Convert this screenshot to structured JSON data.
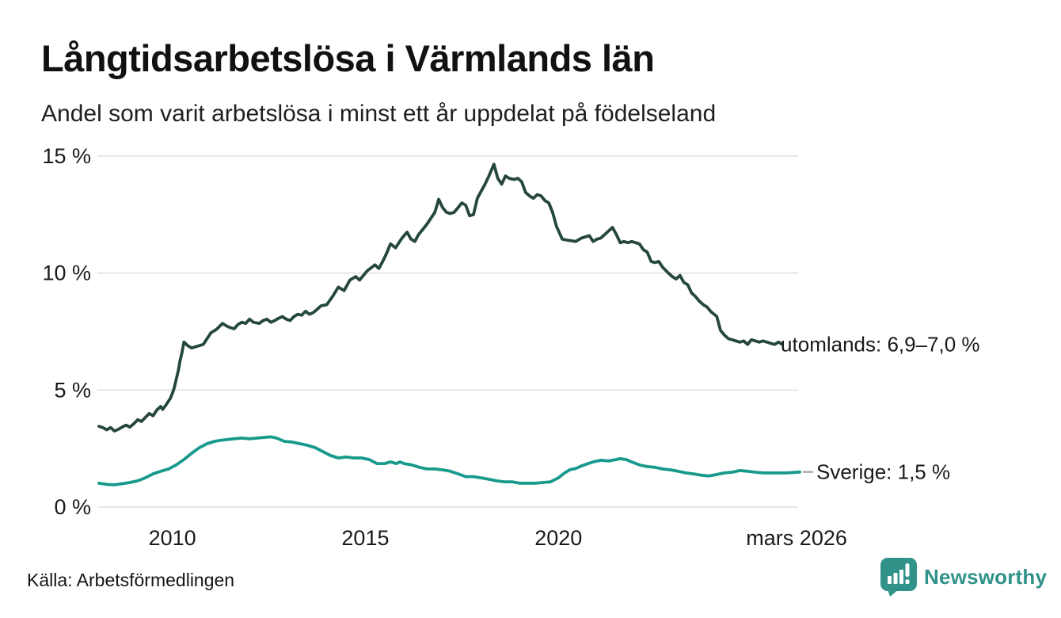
{
  "header": {
    "title": "Långtidsarbetslösa i Värmlands län",
    "subtitle": "Andel som varit arbetslösa i minst ett år uppdelat på födelseland"
  },
  "footer": {
    "source": "Källa: Arbetsförmedlingen",
    "brand": "Newsworthy",
    "brand_color": "#31928a"
  },
  "colors": {
    "background": "#ffffff",
    "text": "#1a1a1a",
    "grid": "#e1e1e1",
    "annotation_dash": "#999999"
  },
  "chart_data": {
    "type": "line",
    "title": "Långtidsarbetslösa i Värmlands län",
    "subtitle": "Andel som varit arbetslösa i minst ett år uppdelat på födelseland",
    "xlabel": "",
    "ylabel": "",
    "x_domain": [
      2008.1,
      2026.25
    ],
    "y_domain": [
      0,
      15
    ],
    "grid": "horizontal",
    "legend_position": "end-of-line",
    "y_ticks": [
      {
        "value": 15,
        "label": "15 %"
      },
      {
        "value": 10,
        "label": "10 %"
      },
      {
        "value": 5,
        "label": "5 %"
      },
      {
        "value": 0,
        "label": "0 %"
      }
    ],
    "x_ticks": [
      {
        "value": 2010,
        "label": "2010"
      },
      {
        "value": 2015,
        "label": "2015"
      },
      {
        "value": 2020,
        "label": "2020"
      },
      {
        "value": 2026.17,
        "label": "mars 2026"
      }
    ],
    "series": [
      {
        "name": "utomlands",
        "label": "utomlands: 6,9–7,0 %",
        "color": "#25473c",
        "points": [
          [
            2008.1,
            3.45
          ],
          [
            2008.2,
            3.4
          ],
          [
            2008.3,
            3.3
          ],
          [
            2008.4,
            3.4
          ],
          [
            2008.5,
            3.25
          ],
          [
            2008.6,
            3.32
          ],
          [
            2008.7,
            3.42
          ],
          [
            2008.8,
            3.5
          ],
          [
            2008.9,
            3.42
          ],
          [
            2009,
            3.56
          ],
          [
            2009.1,
            3.73
          ],
          [
            2009.2,
            3.66
          ],
          [
            2009.3,
            3.83
          ],
          [
            2009.4,
            4
          ],
          [
            2009.5,
            3.9
          ],
          [
            2009.6,
            4.15
          ],
          [
            2009.7,
            4.3
          ],
          [
            2009.75,
            4.17
          ],
          [
            2009.85,
            4.4
          ],
          [
            2009.95,
            4.65
          ],
          [
            2010,
            4.85
          ],
          [
            2010.05,
            5.1
          ],
          [
            2010.1,
            5.45
          ],
          [
            2010.15,
            5.8
          ],
          [
            2010.2,
            6.25
          ],
          [
            2010.25,
            6.6
          ],
          [
            2010.3,
            7.05
          ],
          [
            2010.4,
            6.9
          ],
          [
            2010.5,
            6.8
          ],
          [
            2010.6,
            6.85
          ],
          [
            2010.7,
            6.9
          ],
          [
            2010.8,
            6.95
          ],
          [
            2010.9,
            7.2
          ],
          [
            2011,
            7.45
          ],
          [
            2011.15,
            7.6
          ],
          [
            2011.3,
            7.85
          ],
          [
            2011.45,
            7.7
          ],
          [
            2011.6,
            7.62
          ],
          [
            2011.7,
            7.8
          ],
          [
            2011.8,
            7.9
          ],
          [
            2011.9,
            7.85
          ],
          [
            2012,
            8.03
          ],
          [
            2012.1,
            7.9
          ],
          [
            2012.25,
            7.85
          ],
          [
            2012.35,
            7.97
          ],
          [
            2012.45,
            8.03
          ],
          [
            2012.55,
            7.9
          ],
          [
            2012.65,
            7.97
          ],
          [
            2012.75,
            8.07
          ],
          [
            2012.85,
            8.14
          ],
          [
            2012.95,
            8.03
          ],
          [
            2013.05,
            7.97
          ],
          [
            2013.15,
            8.14
          ],
          [
            2013.25,
            8.24
          ],
          [
            2013.35,
            8.2
          ],
          [
            2013.45,
            8.37
          ],
          [
            2013.55,
            8.24
          ],
          [
            2013.65,
            8.31
          ],
          [
            2013.75,
            8.45
          ],
          [
            2013.85,
            8.6
          ],
          [
            2014,
            8.65
          ],
          [
            2014.15,
            9
          ],
          [
            2014.3,
            9.4
          ],
          [
            2014.45,
            9.25
          ],
          [
            2014.6,
            9.7
          ],
          [
            2014.75,
            9.85
          ],
          [
            2014.85,
            9.7
          ],
          [
            2015.05,
            10.1
          ],
          [
            2015.25,
            10.35
          ],
          [
            2015.35,
            10.2
          ],
          [
            2015.45,
            10.5
          ],
          [
            2015.55,
            10.85
          ],
          [
            2015.65,
            11.25
          ],
          [
            2015.78,
            11.08
          ],
          [
            2015.95,
            11.5
          ],
          [
            2016.08,
            11.75
          ],
          [
            2016.18,
            11.45
          ],
          [
            2016.28,
            11.35
          ],
          [
            2016.38,
            11.65
          ],
          [
            2016.48,
            11.85
          ],
          [
            2016.6,
            12.1
          ],
          [
            2016.7,
            12.35
          ],
          [
            2016.8,
            12.6
          ],
          [
            2016.9,
            13.15
          ],
          [
            2017,
            12.8
          ],
          [
            2017.1,
            12.6
          ],
          [
            2017.2,
            12.55
          ],
          [
            2017.3,
            12.6
          ],
          [
            2017.4,
            12.8
          ],
          [
            2017.5,
            13
          ],
          [
            2017.6,
            12.9
          ],
          [
            2017.7,
            12.45
          ],
          [
            2017.8,
            12.5
          ],
          [
            2017.9,
            13.2
          ],
          [
            2018,
            13.5
          ],
          [
            2018.1,
            13.8
          ],
          [
            2018.2,
            14.15
          ],
          [
            2018.33,
            14.65
          ],
          [
            2018.43,
            14.05
          ],
          [
            2018.53,
            13.8
          ],
          [
            2018.63,
            14.15
          ],
          [
            2018.73,
            14.05
          ],
          [
            2018.85,
            14
          ],
          [
            2018.95,
            14.05
          ],
          [
            2019.05,
            13.9
          ],
          [
            2019.15,
            13.45
          ],
          [
            2019.25,
            13.3
          ],
          [
            2019.35,
            13.2
          ],
          [
            2019.45,
            13.35
          ],
          [
            2019.55,
            13.3
          ],
          [
            2019.65,
            13.1
          ],
          [
            2019.75,
            13
          ],
          [
            2019.85,
            12.6
          ],
          [
            2019.95,
            12
          ],
          [
            2020.1,
            11.45
          ],
          [
            2020.25,
            11.4
          ],
          [
            2020.45,
            11.35
          ],
          [
            2020.6,
            11.5
          ],
          [
            2020.8,
            11.6
          ],
          [
            2020.9,
            11.35
          ],
          [
            2021,
            11.45
          ],
          [
            2021.1,
            11.5
          ],
          [
            2021.3,
            11.8
          ],
          [
            2021.4,
            11.95
          ],
          [
            2021.5,
            11.65
          ],
          [
            2021.6,
            11.3
          ],
          [
            2021.7,
            11.35
          ],
          [
            2021.8,
            11.3
          ],
          [
            2021.9,
            11.35
          ],
          [
            2022,
            11.3
          ],
          [
            2022.1,
            11.25
          ],
          [
            2022.2,
            11
          ],
          [
            2022.3,
            10.9
          ],
          [
            2022.4,
            10.5
          ],
          [
            2022.5,
            10.45
          ],
          [
            2022.6,
            10.5
          ],
          [
            2022.7,
            10.25
          ],
          [
            2022.85,
            10
          ],
          [
            2022.95,
            9.85
          ],
          [
            2023.05,
            9.75
          ],
          [
            2023.15,
            9.9
          ],
          [
            2023.25,
            9.6
          ],
          [
            2023.35,
            9.5
          ],
          [
            2023.45,
            9.15
          ],
          [
            2023.55,
            9
          ],
          [
            2023.65,
            8.8
          ],
          [
            2023.75,
            8.65
          ],
          [
            2023.85,
            8.55
          ],
          [
            2023.95,
            8.35
          ],
          [
            2024.1,
            8.15
          ],
          [
            2024.2,
            7.55
          ],
          [
            2024.3,
            7.35
          ],
          [
            2024.4,
            7.2
          ],
          [
            2024.5,
            7.15
          ],
          [
            2024.6,
            7.1
          ],
          [
            2024.7,
            7.05
          ],
          [
            2024.8,
            7.1
          ],
          [
            2024.9,
            6.95
          ],
          [
            2025,
            7.15
          ],
          [
            2025.1,
            7.1
          ],
          [
            2025.2,
            7.05
          ],
          [
            2025.3,
            7.1
          ],
          [
            2025.4,
            7.05
          ],
          [
            2025.5,
            7
          ],
          [
            2025.6,
            6.95
          ],
          [
            2025.7,
            7.05
          ],
          [
            2025.8,
            6.95
          ]
        ]
      },
      {
        "name": "Sverige",
        "label": "Sverige: 1,5 %",
        "color": "#179a8b",
        "points": [
          [
            2008.1,
            1.02
          ],
          [
            2008.3,
            0.97
          ],
          [
            2008.5,
            0.95
          ],
          [
            2008.7,
            1
          ],
          [
            2008.9,
            1.05
          ],
          [
            2009.1,
            1.12
          ],
          [
            2009.3,
            1.25
          ],
          [
            2009.5,
            1.42
          ],
          [
            2009.7,
            1.53
          ],
          [
            2009.9,
            1.63
          ],
          [
            2010.1,
            1.8
          ],
          [
            2010.3,
            2.03
          ],
          [
            2010.5,
            2.3
          ],
          [
            2010.7,
            2.54
          ],
          [
            2010.9,
            2.71
          ],
          [
            2011.1,
            2.81
          ],
          [
            2011.25,
            2.85
          ],
          [
            2011.4,
            2.88
          ],
          [
            2011.6,
            2.92
          ],
          [
            2011.8,
            2.95
          ],
          [
            2012,
            2.92
          ],
          [
            2012.2,
            2.95
          ],
          [
            2012.4,
            2.98
          ],
          [
            2012.55,
            3
          ],
          [
            2012.7,
            2.95
          ],
          [
            2012.9,
            2.81
          ],
          [
            2013.1,
            2.78
          ],
          [
            2013.3,
            2.71
          ],
          [
            2013.5,
            2.64
          ],
          [
            2013.7,
            2.54
          ],
          [
            2013.9,
            2.37
          ],
          [
            2014.1,
            2.2
          ],
          [
            2014.3,
            2.1
          ],
          [
            2014.5,
            2.14
          ],
          [
            2014.7,
            2.1
          ],
          [
            2014.9,
            2.1
          ],
          [
            2015.1,
            2.03
          ],
          [
            2015.3,
            1.86
          ],
          [
            2015.5,
            1.86
          ],
          [
            2015.65,
            1.93
          ],
          [
            2015.8,
            1.86
          ],
          [
            2015.9,
            1.93
          ],
          [
            2016,
            1.86
          ],
          [
            2016.2,
            1.8
          ],
          [
            2016.4,
            1.7
          ],
          [
            2016.6,
            1.63
          ],
          [
            2016.8,
            1.63
          ],
          [
            2017,
            1.59
          ],
          [
            2017.2,
            1.53
          ],
          [
            2017.4,
            1.42
          ],
          [
            2017.6,
            1.3
          ],
          [
            2017.8,
            1.3
          ],
          [
            2018,
            1.25
          ],
          [
            2018.2,
            1.19
          ],
          [
            2018.4,
            1.12
          ],
          [
            2018.6,
            1.08
          ],
          [
            2018.8,
            1.08
          ],
          [
            2019,
            1.02
          ],
          [
            2019.2,
            1.02
          ],
          [
            2019.4,
            1.02
          ],
          [
            2019.6,
            1.05
          ],
          [
            2019.8,
            1.08
          ],
          [
            2020,
            1.25
          ],
          [
            2020.15,
            1.45
          ],
          [
            2020.3,
            1.6
          ],
          [
            2020.45,
            1.65
          ],
          [
            2020.6,
            1.76
          ],
          [
            2020.75,
            1.85
          ],
          [
            2020.9,
            1.93
          ],
          [
            2021.1,
            2
          ],
          [
            2021.3,
            1.97
          ],
          [
            2021.5,
            2.03
          ],
          [
            2021.6,
            2.07
          ],
          [
            2021.75,
            2.03
          ],
          [
            2021.9,
            1.93
          ],
          [
            2022.1,
            1.8
          ],
          [
            2022.3,
            1.73
          ],
          [
            2022.5,
            1.7
          ],
          [
            2022.7,
            1.63
          ],
          [
            2022.9,
            1.59
          ],
          [
            2023.1,
            1.53
          ],
          [
            2023.3,
            1.46
          ],
          [
            2023.5,
            1.42
          ],
          [
            2023.7,
            1.36
          ],
          [
            2023.9,
            1.33
          ],
          [
            2024.1,
            1.39
          ],
          [
            2024.3,
            1.46
          ],
          [
            2024.5,
            1.49
          ],
          [
            2024.7,
            1.56
          ],
          [
            2024.9,
            1.53
          ],
          [
            2025.1,
            1.49
          ],
          [
            2025.3,
            1.46
          ],
          [
            2025.5,
            1.46
          ],
          [
            2025.7,
            1.46
          ],
          [
            2025.9,
            1.46
          ],
          [
            2026.1,
            1.48
          ],
          [
            2026.25,
            1.5
          ]
        ]
      }
    ]
  }
}
